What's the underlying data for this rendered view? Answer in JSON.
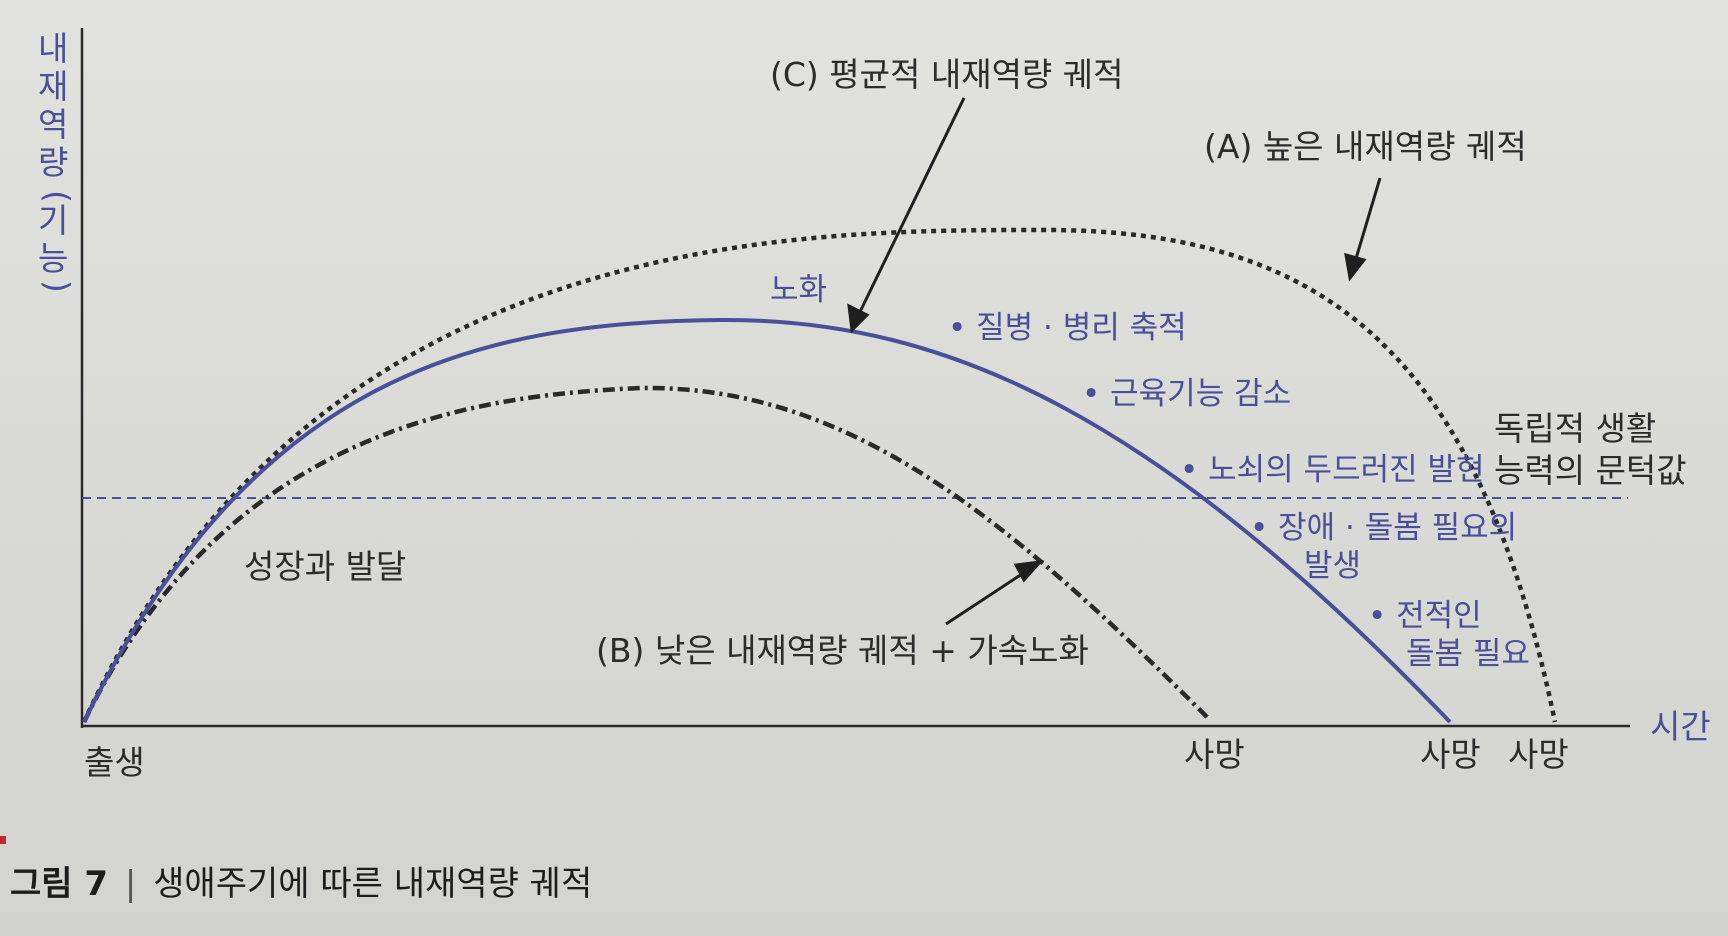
{
  "y_axis_label": [
    "내",
    "재",
    "역",
    "량",
    "(",
    "기",
    "능",
    ")"
  ],
  "x_axis_label": "시간",
  "origin_label": "출생",
  "death_labels": {
    "low": "사망",
    "average": "사망",
    "high": "사망"
  },
  "curve_labels": {
    "A": "(A) 높은 내재역량 궤적",
    "B": "(B) 낮은 내재역량 궤적 + 가속노화",
    "C": "(C) 평균적 내재역량 궤적"
  },
  "phase_labels": {
    "growth": "성장과 발달",
    "aging": "노화"
  },
  "aging_stages": [
    "• 질병 · 병리 축적",
    "• 근육기능 감소",
    "• 노쇠의 두드러진 발현",
    "• 장애 · 돌봄 필요의",
    "발생",
    "• 전적인",
    "돌봄 필요"
  ],
  "threshold_label": [
    "독립적 생활",
    "능력의 문턱값"
  ],
  "caption": {
    "figure": "그림 7",
    "separator": "|",
    "text": "생애주기에 따른 내재역량 궤적"
  },
  "colors": {
    "average_curve": "#4a4f9a",
    "dotted_curves": "#2a2a2a",
    "threshold_line": "#4a4f9a",
    "axis": "#2a2a2a",
    "blue_text": "#4a4f9a"
  }
}
